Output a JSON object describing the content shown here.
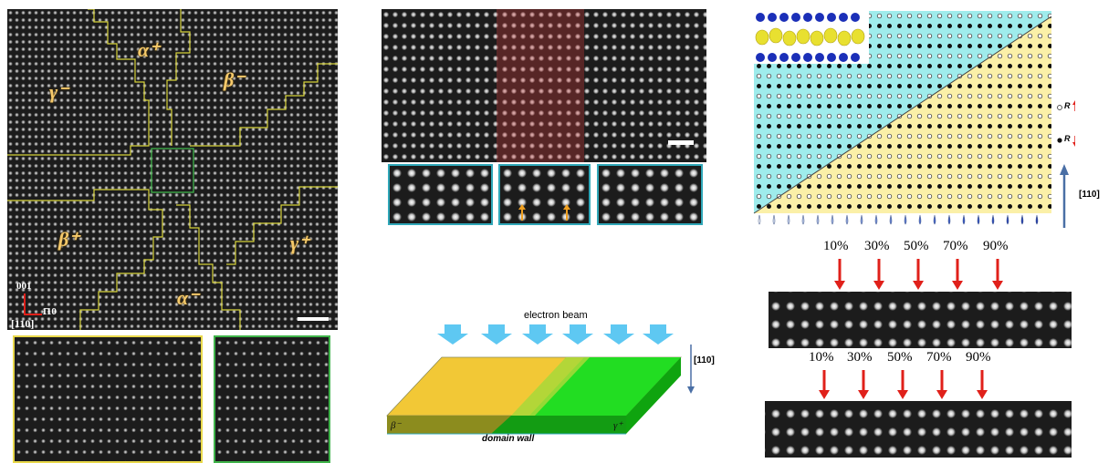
{
  "panel_a": {
    "domain_labels": {
      "gamma_minus": "γ⁻",
      "alpha_plus": "α⁺",
      "beta_minus": "β⁻",
      "beta_plus": "β⁺",
      "gamma_plus": "γ⁺",
      "alpha_minus": "α⁻"
    },
    "axis_001": "001",
    "axis_110": "1̄10",
    "zone_axis": "[110]"
  },
  "panel_e": {
    "label_r_up": "R",
    "label_r_down": "R",
    "direction": "[110]"
  },
  "panel_d": {
    "electron_beam": "electron beam",
    "direction": "[110]",
    "left_domain": "β⁻",
    "right_domain": "γ⁺",
    "domain_wall": "domain wall"
  },
  "panel_f": {
    "row1_percents": [
      "10%",
      "30%",
      "50%",
      "70%",
      "90%"
    ],
    "row2_percents": [
      "10%",
      "30%",
      "50%",
      "70%",
      "90%"
    ]
  },
  "colors": {
    "yellow_outline": "#d6d23a",
    "green_outline": "#3fb34a",
    "cyan_frame": "#2fa7b8",
    "cyan_domain": "#9fecec",
    "yellow_domain": "#fbf0a8",
    "red_arrow": "#e0201a",
    "blue_arrow": "#5ec8f2",
    "green_slab": "#22dd22",
    "yellow_slab": "#f2c836"
  }
}
